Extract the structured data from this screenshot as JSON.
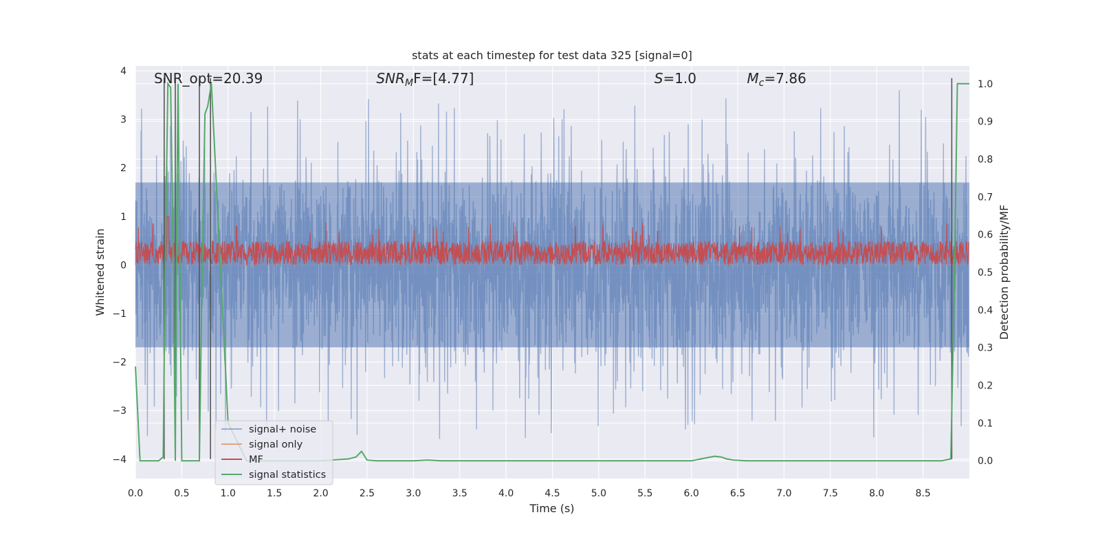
{
  "chart_data": {
    "type": "line",
    "title": "stats at each timestep for test data 325 [signal=0]",
    "xlabel": "Time (s)",
    "ylabel_left": "Whitened strain",
    "ylabel_right": "Detection probability/MF",
    "xlim": [
      0.0,
      9.0
    ],
    "ylim_left": [
      -4.4,
      4.1
    ],
    "ylim_right": [
      -0.047,
      1.047
    ],
    "xticks": [
      "0.0",
      "0.5",
      "1.0",
      "1.5",
      "2.0",
      "2.5",
      "3.0",
      "3.5",
      "4.0",
      "4.5",
      "5.0",
      "5.5",
      "6.0",
      "6.5",
      "7.0",
      "7.5",
      "8.0",
      "8.5"
    ],
    "yticks_left": [
      "4",
      "3",
      "2",
      "1",
      "0",
      "−1",
      "−2",
      "−3",
      "−4"
    ],
    "yticks_right": [
      "1.0",
      "0.9",
      "0.8",
      "0.7",
      "0.6",
      "0.5",
      "0.4",
      "0.3",
      "0.2",
      "0.1",
      "0.0"
    ],
    "grid": true,
    "legend_position": "lower-left",
    "annotations": [
      {
        "text": "SNR_opt=20.39",
        "x": 0.2,
        "style": "normal"
      },
      {
        "text": "SNR",
        "sub": "M",
        "rest": "F=[4.77]",
        "x": 2.6,
        "style": "math"
      },
      {
        "text": "S",
        "rest": "=1.0",
        "x": 5.6,
        "style": "math"
      },
      {
        "text": "M",
        "sub": "c",
        "rest": "=7.86",
        "x": 6.6,
        "style": "math"
      }
    ],
    "series": [
      {
        "name": "signal+ noise",
        "color": "#4c72b0",
        "alpha": 0.5,
        "axis": "left",
        "description": "noisy whitened strain, approx amplitude ±1.7 with spikes up to about ±3.8"
      },
      {
        "name": "signal only",
        "color": "#dd8452",
        "axis": "left",
        "values_note": "flat near 0, hidden"
      },
      {
        "name": "MF",
        "color": "#c44e52",
        "axis": "left",
        "description": "matched filter output, band roughly 0.0 to 0.6 with spikes near 1.0"
      },
      {
        "name": "signal statistics",
        "color": "#55a868",
        "axis": "right",
        "x": [
          0.0,
          0.05,
          0.25,
          0.3,
          0.32,
          0.35,
          0.38,
          0.41,
          0.43,
          0.44,
          0.46,
          0.5,
          0.6,
          0.69,
          0.72,
          0.75,
          0.78,
          0.82,
          0.9,
          1.0,
          1.2,
          1.5,
          2.0,
          2.3,
          2.38,
          2.44,
          2.5,
          2.6,
          3.0,
          3.15,
          3.3,
          4.0,
          5.0,
          6.0,
          6.25,
          6.32,
          6.38,
          6.45,
          6.6,
          7.0,
          8.0,
          8.7,
          8.8,
          8.84,
          8.87,
          8.92,
          9.0
        ],
        "values": [
          0.25,
          0.0,
          0.0,
          0.01,
          0.5,
          1.0,
          0.99,
          0.5,
          0.0,
          0.5,
          1.0,
          0.0,
          0.0,
          0.0,
          0.5,
          0.92,
          0.94,
          1.0,
          0.6,
          0.1,
          0.0,
          0.0,
          0.0,
          0.005,
          0.01,
          0.025,
          0.002,
          0.0,
          0.0,
          0.002,
          0.0,
          0.0,
          0.0,
          0.0,
          0.012,
          0.01,
          0.005,
          0.002,
          0.0,
          0.0,
          0.0,
          0.0,
          0.005,
          0.5,
          1.0,
          1.0,
          1.0
        ]
      },
      {
        "name": "detection markers",
        "color": "#555555",
        "axis": "left",
        "x_positions": [
          0.31,
          0.43,
          0.69,
          0.81,
          8.81
        ],
        "legend": false
      }
    ]
  }
}
